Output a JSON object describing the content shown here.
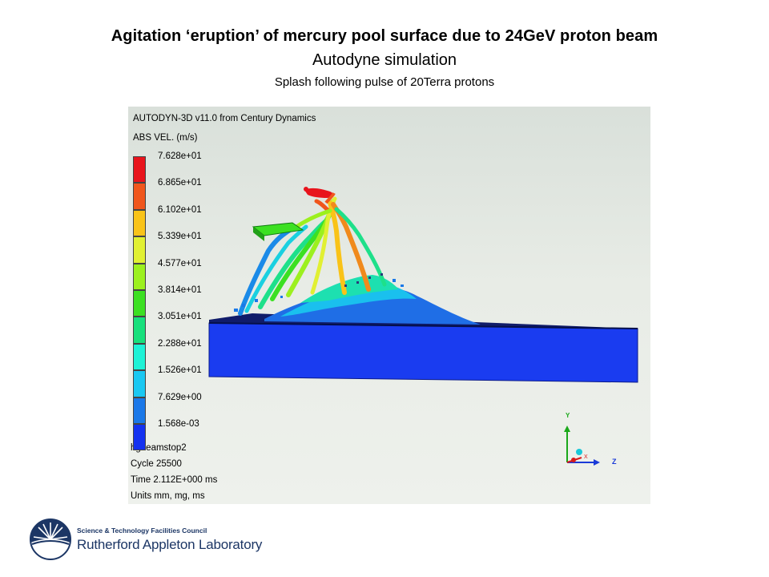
{
  "slide": {
    "title": "Agitation ‘eruption’ of mercury pool surface due to 24GeV proton beam",
    "subtitle": "Autodyne simulation",
    "caption": "Splash following pulse of 20Terra protons"
  },
  "viewer": {
    "header": "AUTODYN-3D v11.0 from Century Dynamics",
    "variable": "ABS VEL. (m/s)",
    "legend": [
      {
        "label": "7.628e+01",
        "color": "#e8141c"
      },
      {
        "label": "6.865e+01",
        "color": "#f0561c"
      },
      {
        "label": "6.102e+01",
        "color": "#f9c318"
      },
      {
        "label": "5.339e+01",
        "color": "#e1f032"
      },
      {
        "label": "4.577e+01",
        "color": "#9cf01e"
      },
      {
        "label": "3.814e+01",
        "color": "#3ce022"
      },
      {
        "label": "3.051e+01",
        "color": "#17e07c"
      },
      {
        "label": "2.288e+01",
        "color": "#1ef2d6"
      },
      {
        "label": "1.526e+01",
        "color": "#1ac8f2"
      },
      {
        "label": "7.629e+00",
        "color": "#1a78e8"
      },
      {
        "label": "1.568e-03",
        "color": "#1432f0"
      }
    ],
    "info": {
      "model": "hgbeamstop2",
      "cycle": "Cycle 25500",
      "time": "Time 2.112E+000 ms",
      "units": "Units mm, mg, ms"
    },
    "axes": {
      "y_label": "Y",
      "z_label": "Z",
      "x_label": "X"
    }
  },
  "logo": {
    "council": "Science & Technology Facilities Council",
    "lab": "Rutherford Appleton Laboratory",
    "brand_color": "#1c3665"
  }
}
